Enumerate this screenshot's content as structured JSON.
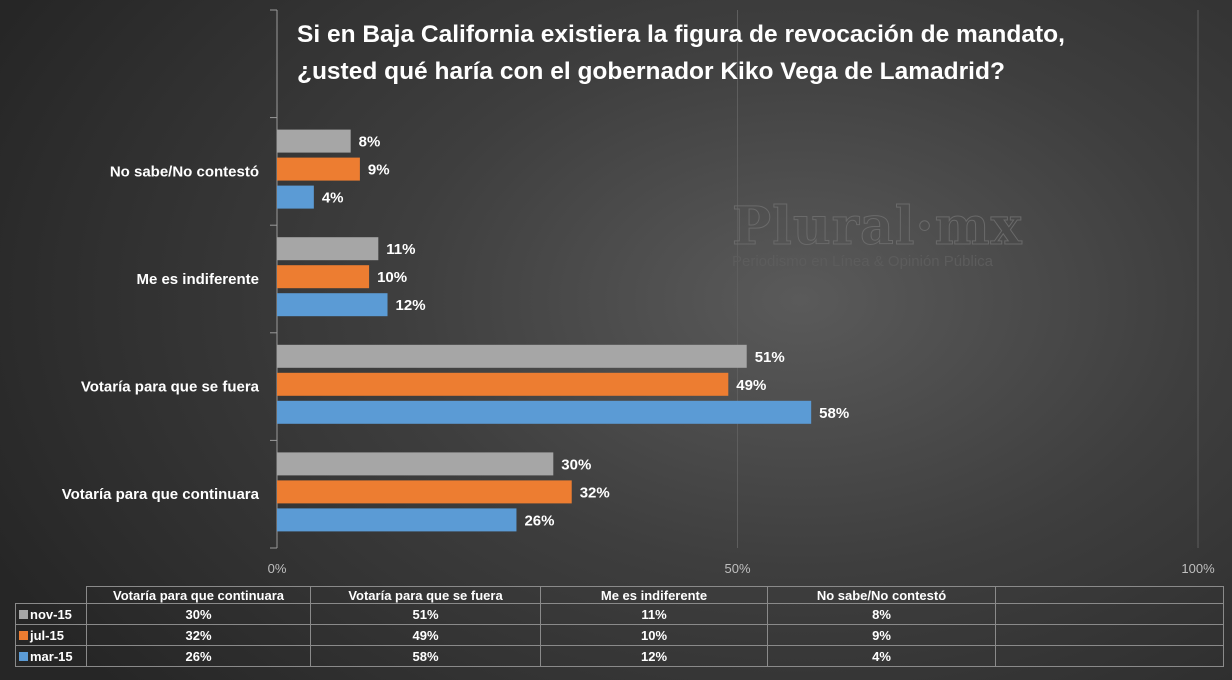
{
  "title": [
    "Si en Baja California existiera la figura de revocación de mandato,",
    "¿usted qué haría con el gobernador Kiko Vega de Lamadrid?"
  ],
  "watermark": {
    "logo": "Plural·mx",
    "tagline": "Periodismo en Línea & Opinión Pública"
  },
  "chart_data": {
    "type": "bar",
    "orientation": "horizontal",
    "title": "Si en Baja California existiera la figura de revocación de mandato, ¿usted qué haría con el gobernador Kiko Vega de Lamadrid?",
    "categories": [
      "Votaría para que continuara",
      "Votaría para que se fuera",
      "Me es indiferente",
      "No sabe/No contestó"
    ],
    "series": [
      {
        "name": "nov-15",
        "color": "#a6a6a6",
        "values": [
          30,
          51,
          11,
          8
        ]
      },
      {
        "name": "jul-15",
        "color": "#ed7d31",
        "values": [
          32,
          49,
          10,
          9
        ]
      },
      {
        "name": "mar-15",
        "color": "#5b9bd5",
        "values": [
          26,
          58,
          12,
          4
        ]
      }
    ],
    "xlim": [
      0,
      100
    ],
    "xticks": [
      "0%",
      "50%",
      "100%"
    ],
    "grid": true,
    "legend": "data-table-below"
  }
}
